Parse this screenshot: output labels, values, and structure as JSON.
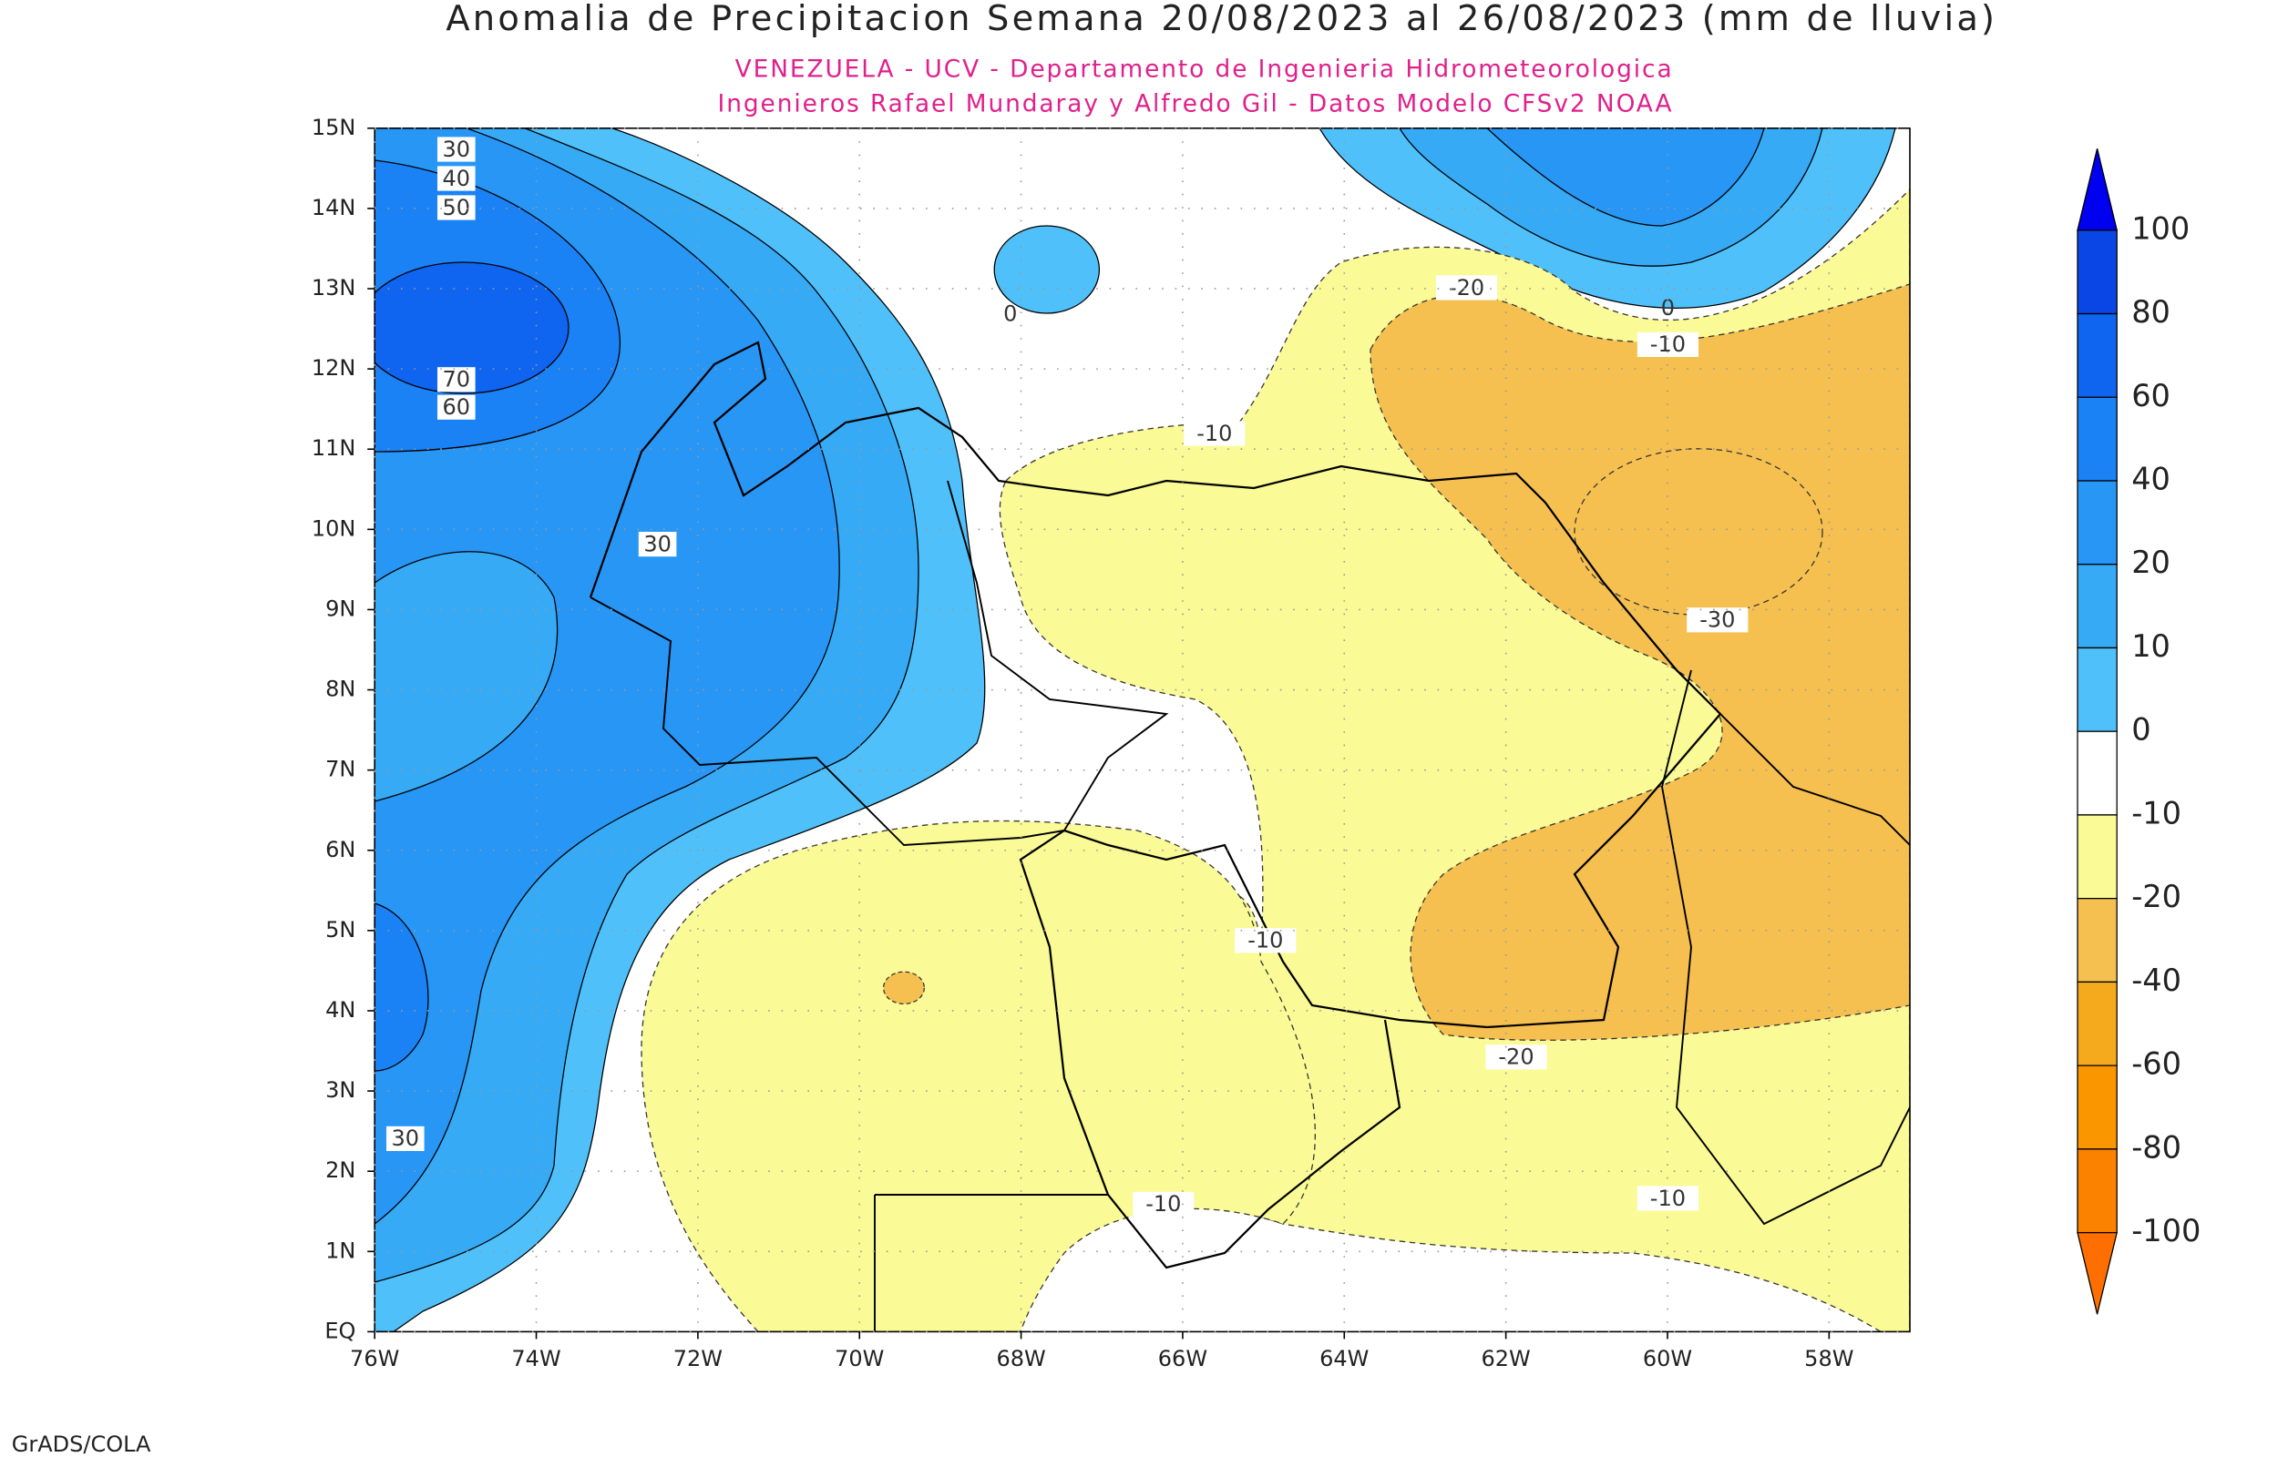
{
  "chart_data": {
    "type": "map",
    "title": "Anomalia de Precipitacion Semana 20/08/2023 al 26/08/2023 (mm de lluvia)",
    "subtitle": [
      "VENEZUELA - UCV - Departamento de Ingenieria Hidrometeorologica",
      "Ingenieros Rafael Mundaray y Alfredo Gil - Datos Modelo CFSv2 NOAA"
    ],
    "xlim": [
      -76,
      -57
    ],
    "ylim": [
      0,
      15
    ],
    "xticks": [
      {
        "value": -76,
        "label": "76W"
      },
      {
        "value": -74,
        "label": "74W"
      },
      {
        "value": -72,
        "label": "72W"
      },
      {
        "value": -70,
        "label": "70W"
      },
      {
        "value": -68,
        "label": "68W"
      },
      {
        "value": -66,
        "label": "66W"
      },
      {
        "value": -64,
        "label": "64W"
      },
      {
        "value": -62,
        "label": "62W"
      },
      {
        "value": -60,
        "label": "60W"
      },
      {
        "value": -58,
        "label": "58W"
      }
    ],
    "yticks": [
      {
        "value": 0,
        "label": "EQ"
      },
      {
        "value": 1,
        "label": "1N"
      },
      {
        "value": 2,
        "label": "2N"
      },
      {
        "value": 3,
        "label": "3N"
      },
      {
        "value": 4,
        "label": "4N"
      },
      {
        "value": 5,
        "label": "5N"
      },
      {
        "value": 6,
        "label": "6N"
      },
      {
        "value": 7,
        "label": "7N"
      },
      {
        "value": 8,
        "label": "8N"
      },
      {
        "value": 9,
        "label": "9N"
      },
      {
        "value": 10,
        "label": "10N"
      },
      {
        "value": 11,
        "label": "11N"
      },
      {
        "value": 12,
        "label": "12N"
      },
      {
        "value": 13,
        "label": "13N"
      },
      {
        "value": 14,
        "label": "14N"
      },
      {
        "value": 15,
        "label": "15N"
      }
    ],
    "grid": true,
    "colorbar": {
      "levels": [
        100,
        80,
        60,
        40,
        20,
        10,
        0,
        -10,
        -20,
        -40,
        -60,
        -80,
        -100
      ],
      "colors": [
        "#0000f0",
        "#0a46e6",
        "#0f64f0",
        "#1a82f5",
        "#2896f5",
        "#36aaf5",
        "#50c0fa",
        "#ffffff",
        "#fafa96",
        "#f5c050",
        "#f5aa1e",
        "#fa9600",
        "#fa8200",
        "#ff6e00"
      ]
    },
    "contour_labels": [
      30,
      40,
      50,
      70,
      60,
      30,
      30,
      0,
      0,
      -20,
      -10,
      -10,
      -30,
      -10,
      -20,
      -10,
      -10
    ],
    "footer": "GrADS/COLA"
  }
}
